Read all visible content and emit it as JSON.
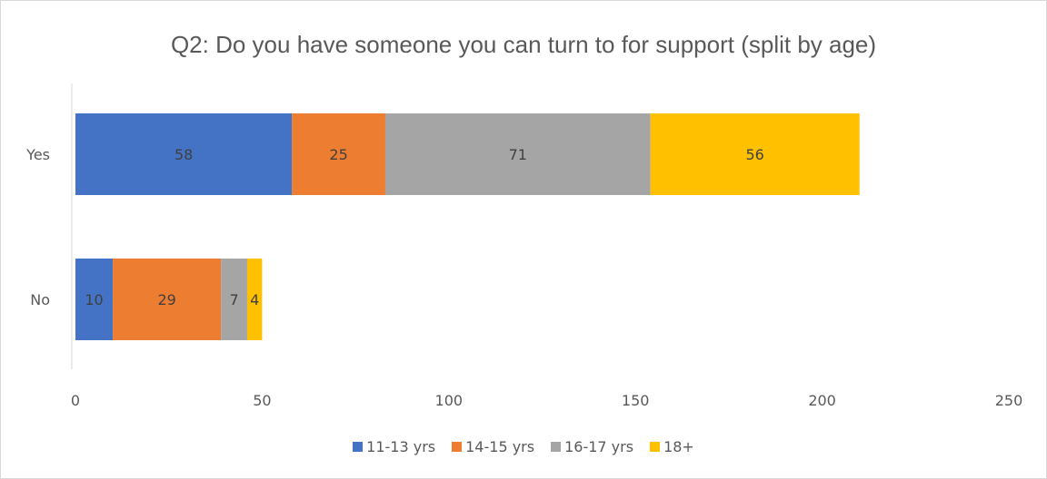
{
  "chart_data": {
    "type": "bar",
    "orientation": "horizontal",
    "stacked": true,
    "title": "Q2: Do you have someone you can turn to for support (split by age)",
    "categories": [
      "Yes",
      "No"
    ],
    "series": [
      {
        "name": "11-13 yrs",
        "color": "#4472c4",
        "values": [
          58,
          10
        ]
      },
      {
        "name": "14-15 yrs",
        "color": "#ed7d31",
        "values": [
          25,
          29
        ]
      },
      {
        "name": "16-17 yrs",
        "color": "#a5a5a5",
        "values": [
          71,
          7
        ]
      },
      {
        "name": "18+",
        "color": "#ffc000",
        "values": [
          56,
          4
        ]
      }
    ],
    "xlim": [
      0,
      250
    ],
    "xticks": [
      "0",
      "50",
      "100",
      "150",
      "200",
      "250"
    ],
    "grid": false,
    "legend_position": "bottom"
  }
}
